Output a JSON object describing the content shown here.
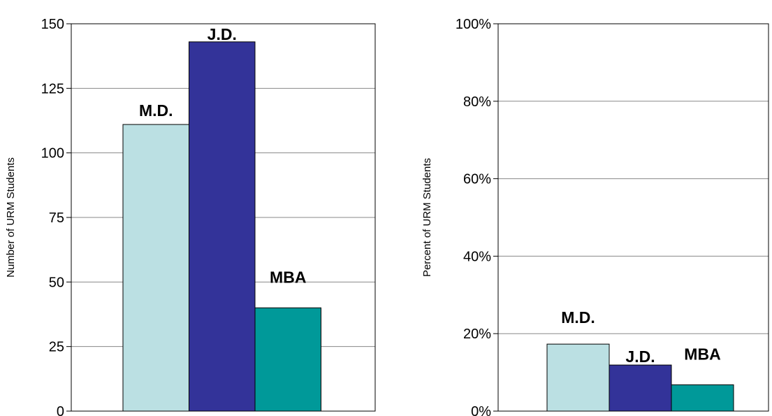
{
  "chart_data": [
    {
      "type": "bar",
      "categories": [
        "M.D.",
        "J.D.",
        "MBA"
      ],
      "values": [
        111,
        143,
        40
      ],
      "colors": [
        "#BBE0E3",
        "#333399",
        "#009999"
      ],
      "ylabel": "Number of URM Students",
      "ylim": [
        0,
        150
      ],
      "yticks": [
        0,
        25,
        50,
        75,
        100,
        125,
        150
      ],
      "ytick_labels": [
        "0",
        "25",
        "50",
        "75",
        "100",
        "125",
        "150"
      ],
      "grid": true
    },
    {
      "type": "bar",
      "categories": [
        "M.D.",
        "J.D.",
        "MBA"
      ],
      "values": [
        17.3,
        11.9,
        6.8
      ],
      "colors": [
        "#BBE0E3",
        "#333399",
        "#009999"
      ],
      "ylabel": "Percent of URM Students",
      "ylim": [
        0,
        100
      ],
      "yticks": [
        0,
        20,
        40,
        60,
        80,
        100
      ],
      "ytick_labels": [
        "0%",
        "20%",
        "40%",
        "60%",
        "80%",
        "100%"
      ],
      "grid": true
    }
  ]
}
